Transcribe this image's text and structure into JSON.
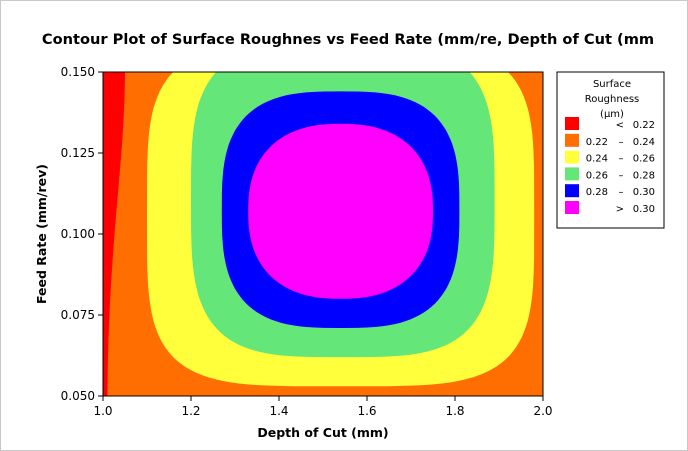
{
  "chart_data": {
    "type": "contour",
    "title": "Contour Plot of Surface Roughnes vs Feed Rate (mm/re, Depth of Cut (mm",
    "xlabel": "Depth of Cut (mm)",
    "ylabel": "Feed Rate (mm/rev)",
    "xlim": [
      1.0,
      2.0
    ],
    "ylim": [
      0.05,
      0.15
    ],
    "xticks": [
      "1.0",
      "1.2",
      "1.4",
      "1.6",
      "1.8",
      "2.0"
    ],
    "yticks": [
      "0.050",
      "0.075",
      "0.100",
      "0.125",
      "0.150"
    ],
    "legend": {
      "title": [
        "Surface",
        "Roughness",
        "(µm)"
      ],
      "placement": "right",
      "entries": [
        {
          "low": "<",
          "high": "0.22",
          "color": "#ff0000"
        },
        {
          "low": "0.22",
          "sep": "–",
          "high": "0.24",
          "color": "#ff6e00"
        },
        {
          "low": "0.24",
          "sep": "–",
          "high": "0.26",
          "color": "#ffff3c"
        },
        {
          "low": "0.26",
          "sep": "–",
          "high": "0.28",
          "color": "#64e678"
        },
        {
          "low": "0.28",
          "sep": "–",
          "high": "0.30",
          "color": "#0000ff"
        },
        {
          "low": ">",
          "high": "0.30",
          "color": "#ff00ff"
        }
      ]
    },
    "levels": [
      0.22,
      0.24,
      0.26,
      0.28,
      0.3
    ],
    "contour_boundaries": [
      {
        "level": 0.22,
        "x": [
          1.01,
          1.05
        ],
        "y_range": [
          0.05,
          0.15
        ]
      },
      {
        "level": 0.24,
        "x": [
          1.1,
          1.98
        ],
        "y": [
          0.053,
          0.15
        ]
      },
      {
        "level": 0.26,
        "x": [
          1.2,
          1.89
        ],
        "y": [
          0.062,
          0.15
        ]
      },
      {
        "level": 0.28,
        "x": [
          1.27,
          1.81
        ],
        "y": [
          0.071,
          0.144
        ]
      },
      {
        "level": 0.3,
        "x": [
          1.33,
          1.75
        ],
        "y": [
          0.08,
          0.134
        ]
      }
    ],
    "peak": {
      "x": 1.54,
      "y": 0.107
    }
  }
}
